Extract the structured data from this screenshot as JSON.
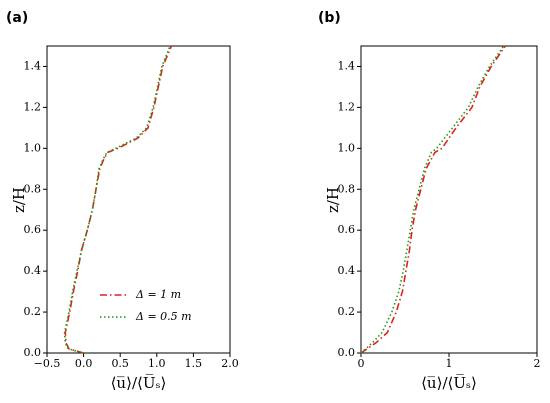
{
  "chart_data": [
    {
      "type": "line",
      "panel_label": "(a)",
      "x_label": "⟨u̅⟩/⟨U̅ₛ⟩",
      "y_label": "z/H",
      "xlim": [
        -0.5,
        2.0
      ],
      "ylim": [
        0,
        1.5
      ],
      "xticks": [
        {
          "value": -0.5,
          "label": "−0.5"
        },
        {
          "value": 0,
          "label": "0.0"
        },
        0.5,
        {
          "value": 1.0,
          "label": "1.0"
        },
        1.5,
        {
          "value": 2.0,
          "label": "2.0"
        }
      ],
      "yticks": [
        {
          "value": 0,
          "label": "0.0"
        },
        0.2,
        0.4,
        0.6,
        0.8,
        {
          "value": 1.0,
          "label": "1.0"
        },
        1.2,
        1.4
      ],
      "legend": "lower right",
      "series": [
        {
          "name": "Δ = 1 m",
          "color": "#e0201b",
          "style": "dashdot",
          "x": [
            0.0,
            -0.2,
            -0.24,
            -0.25,
            -0.19,
            -0.14,
            -0.08,
            -0.03,
            0.05,
            0.12,
            0.17,
            0.22,
            0.28,
            0.33,
            0.47,
            0.74,
            0.88,
            0.96,
            1.02,
            1.08,
            1.2
          ],
          "y": [
            0,
            0.02,
            0.05,
            0.1,
            0.2,
            0.3,
            0.4,
            0.5,
            0.6,
            0.7,
            0.8,
            0.9,
            0.95,
            0.98,
            1.0,
            1.05,
            1.1,
            1.2,
            1.3,
            1.4,
            1.5
          ]
        },
        {
          "name": "Δ = 0.5 m",
          "color": "#1a9a1a",
          "style": "dotted",
          "x": [
            0.0,
            -0.21,
            -0.25,
            -0.26,
            -0.2,
            -0.15,
            -0.09,
            -0.03,
            0.05,
            0.12,
            0.17,
            0.21,
            0.27,
            0.32,
            0.44,
            0.72,
            0.86,
            0.95,
            1.01,
            1.07,
            1.18
          ],
          "y": [
            0,
            0.02,
            0.05,
            0.1,
            0.2,
            0.3,
            0.4,
            0.5,
            0.6,
            0.7,
            0.8,
            0.9,
            0.95,
            0.98,
            1.0,
            1.05,
            1.1,
            1.2,
            1.3,
            1.4,
            1.5
          ]
        }
      ]
    },
    {
      "type": "line",
      "panel_label": "(b)",
      "x_label": "⟨u̅⟩/⟨U̅ₛ⟩",
      "y_label": "z/H",
      "xlim": [
        0,
        2
      ],
      "ylim": [
        0,
        1.5
      ],
      "xticks": [
        0,
        1,
        2
      ],
      "yticks": [
        {
          "value": 0,
          "label": "0.0"
        },
        0.2,
        0.4,
        0.6,
        0.8,
        {
          "value": 1.0,
          "label": "1.0"
        },
        1.2,
        1.4
      ],
      "series": [
        {
          "name": "Δ = 1 m",
          "color": "#e0201b",
          "style": "dashdot",
          "x": [
            0.0,
            0.17,
            0.3,
            0.4,
            0.47,
            0.51,
            0.55,
            0.58,
            0.62,
            0.68,
            0.74,
            0.84,
            0.92,
            1.08,
            1.26,
            1.35,
            1.48,
            1.64
          ],
          "y": [
            0,
            0.05,
            0.1,
            0.2,
            0.3,
            0.4,
            0.5,
            0.6,
            0.7,
            0.8,
            0.9,
            0.98,
            1.0,
            1.1,
            1.2,
            1.3,
            1.4,
            1.5
          ]
        },
        {
          "name": "Δ = 0.5 m",
          "color": "#1a9a1a",
          "style": "dotted",
          "x": [
            0.0,
            0.13,
            0.24,
            0.35,
            0.43,
            0.48,
            0.52,
            0.56,
            0.6,
            0.66,
            0.72,
            0.8,
            0.86,
            1.04,
            1.22,
            1.33,
            1.46,
            1.62
          ],
          "y": [
            0,
            0.05,
            0.1,
            0.2,
            0.3,
            0.4,
            0.5,
            0.6,
            0.7,
            0.8,
            0.9,
            0.98,
            1.0,
            1.1,
            1.2,
            1.3,
            1.4,
            1.5
          ]
        }
      ]
    }
  ]
}
